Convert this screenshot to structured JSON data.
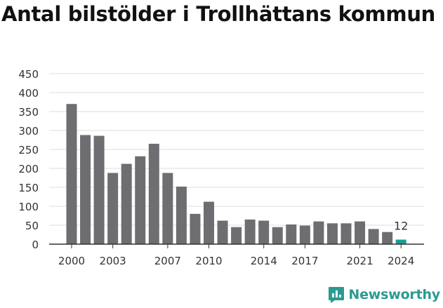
{
  "title": "Antal bilstölder i Trollhättans kommun år för år",
  "chart_data": {
    "type": "bar",
    "title": "Antal bilstölder i Trollhättans kommun år för år",
    "xlabel": "",
    "ylabel": "",
    "x": [
      2000,
      2001,
      2002,
      2003,
      2004,
      2005,
      2006,
      2007,
      2008,
      2009,
      2010,
      2011,
      2012,
      2013,
      2014,
      2015,
      2016,
      2017,
      2018,
      2019,
      2020,
      2021,
      2022,
      2023,
      2024
    ],
    "values": [
      370,
      288,
      286,
      188,
      212,
      232,
      265,
      188,
      152,
      80,
      112,
      62,
      45,
      65,
      62,
      45,
      52,
      49,
      60,
      55,
      55,
      60,
      40,
      32,
      12
    ],
    "ylim": [
      0,
      450
    ],
    "yticks": [
      0,
      50,
      100,
      150,
      200,
      250,
      300,
      350,
      400,
      450
    ],
    "xticks": [
      2000,
      2003,
      2007,
      2010,
      2014,
      2017,
      2021,
      2024
    ],
    "grid": true,
    "annotation": {
      "x": 2024,
      "text": "12"
    },
    "colors": {
      "bar": "#6e6e72",
      "highlight": "#1a9e8f",
      "grid": "#dcdcdc",
      "axis": "#333333"
    }
  },
  "brand": {
    "name": "Newsworthy",
    "icon": "newsworthy-logo-icon",
    "color": "#2b9a90"
  }
}
